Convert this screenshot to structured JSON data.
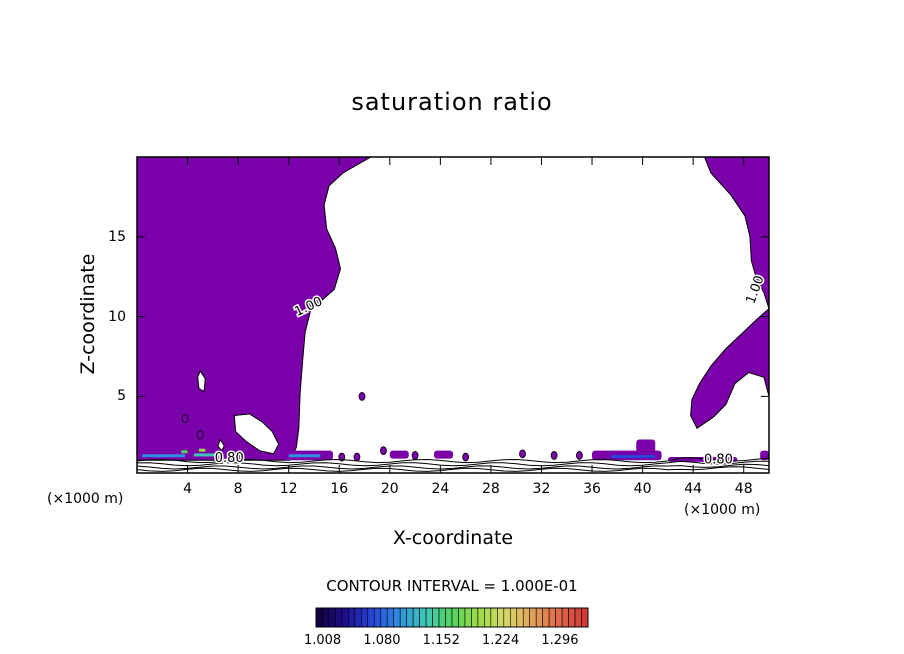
{
  "chart_data": {
    "type": "heatmap",
    "title": "saturation ratio",
    "xlabel": "X-coordinate",
    "ylabel": "Z-coordinate",
    "x_unit_left": "(×1000 m)",
    "x_unit_right": "(×1000 m)",
    "xlim": [
      0,
      50
    ],
    "ylim": [
      0.2,
      20
    ],
    "x_ticks": [
      4,
      8,
      12,
      16,
      20,
      24,
      28,
      32,
      36,
      40,
      44,
      48
    ],
    "x_tick_labels": [
      "4",
      "8",
      "12",
      "16",
      "20",
      "24",
      "28",
      "32",
      "36",
      "40",
      "44",
      "48"
    ],
    "y_ticks": [
      5,
      10,
      15
    ],
    "y_tick_labels": [
      "5",
      "10",
      "15"
    ],
    "contour_interval_text": "CONTOUR INTERVAL = 1.000E-01",
    "contour_labels": [
      {
        "text": "1.00",
        "x": 13.7,
        "y": 10.4,
        "angle": -25
      },
      {
        "text": "1.00",
        "x": 49.2,
        "y": 11.6,
        "angle": -70
      },
      {
        "text": "0.80",
        "x": 7.3,
        "y": 0.9,
        "angle": 0
      },
      {
        "text": "0.80",
        "x": 46.0,
        "y": 0.8,
        "angle": 0
      }
    ],
    "colorbar": {
      "min": 1.0,
      "max": 1.33,
      "tick_labels": [
        "1.008",
        "1.080",
        "1.152",
        "1.224",
        "1.296"
      ],
      "tick_values": [
        1.008,
        1.08,
        1.152,
        1.224,
        1.296
      ],
      "colors": [
        "#150045",
        "#1e1090",
        "#2646d8",
        "#2f8fe0",
        "#3ec7b8",
        "#53d35c",
        "#9edb4a",
        "#d7d86a",
        "#e0a45a",
        "#e06a4a",
        "#d23a36"
      ]
    },
    "supersat_color": "#7a00aa",
    "regions_description_values": {
      "left_supersat": {
        "x": [
          0,
          18.5
        ],
        "y": [
          1.0,
          20
        ]
      },
      "right_supersat": {
        "x": [
          43.5,
          50
        ],
        "y": [
          3.0,
          20
        ]
      }
    },
    "grid": false,
    "legend": "colorbar-bottom"
  }
}
